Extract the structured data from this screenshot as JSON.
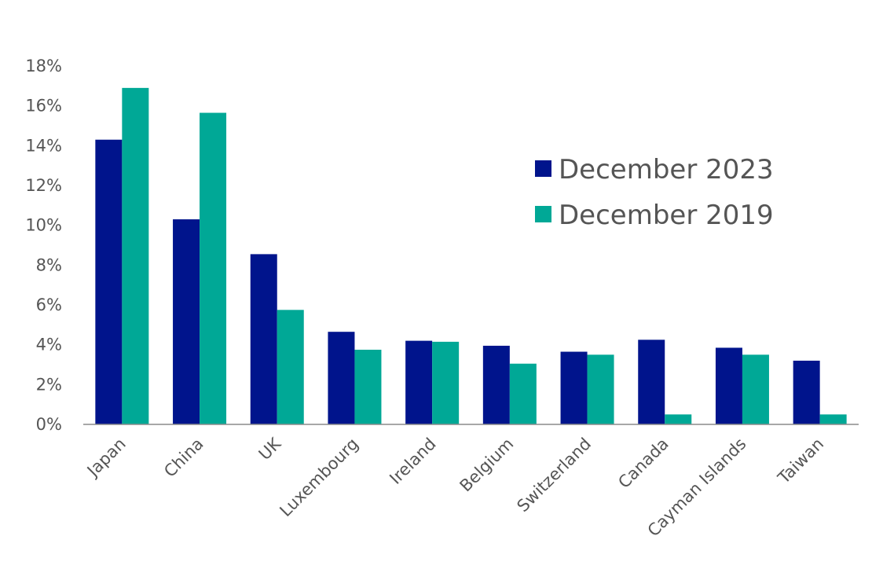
{
  "chart_data": {
    "type": "bar",
    "title": "",
    "xlabel": "",
    "ylabel": "",
    "categories": [
      "Japan",
      "China",
      "UK",
      "Luxembourg",
      "Ireland",
      "Belgium",
      "Switzerland",
      "Canada",
      "Cayman Islands",
      "Taiwan"
    ],
    "series": [
      {
        "name": "December 2023",
        "color": "#00148C",
        "values": [
          14.3,
          10.3,
          8.55,
          4.65,
          4.2,
          3.95,
          3.65,
          4.25,
          3.85,
          3.2
        ]
      },
      {
        "name": "December 2019",
        "color": "#00A896",
        "values": [
          16.9,
          15.65,
          5.75,
          3.75,
          4.15,
          3.05,
          3.5,
          0.5,
          3.5,
          0.5
        ]
      }
    ],
    "ylim": [
      0,
      18
    ],
    "yticks": [
      0,
      2,
      4,
      6,
      8,
      10,
      12,
      14,
      16,
      18
    ],
    "ytick_labels": [
      "0%",
      "2%",
      "4%",
      "6%",
      "8%",
      "10%",
      "12%",
      "14%",
      "16%",
      "18%"
    ],
    "grid": false,
    "legend_position": "top-right"
  }
}
